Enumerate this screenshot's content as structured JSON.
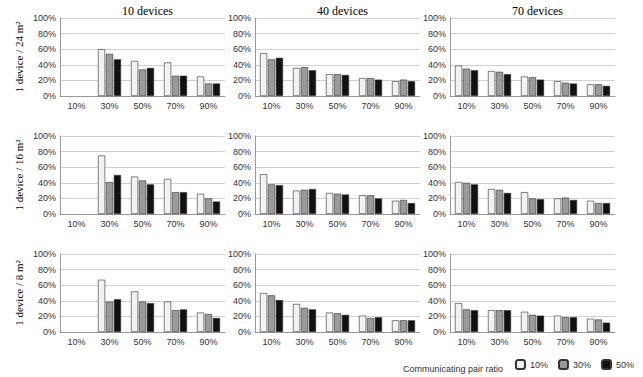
{
  "chart_data": [
    {
      "type": "bar",
      "title": "10 devices",
      "ylabel": "1 device / 24 m²",
      "categories": [
        "10%",
        "30%",
        "50%",
        "70%",
        "90%"
      ],
      "series": [
        {
          "name": "10%",
          "color": "#f2f2f2",
          "values": [
            null,
            60,
            45,
            43,
            25
          ]
        },
        {
          "name": "30%",
          "color": "#9a9a9a",
          "values": [
            null,
            54,
            34,
            26,
            16
          ]
        },
        {
          "name": "50%",
          "color": "#111111",
          "values": [
            null,
            47,
            36,
            26,
            16
          ]
        }
      ],
      "ylim": [
        0,
        100
      ],
      "yticks": [
        {
          "value": 0,
          "label": "0%"
        },
        {
          "value": 20,
          "label": "20%"
        },
        {
          "value": 40,
          "label": "40%"
        },
        {
          "value": 60,
          "label": "60%"
        },
        {
          "value": 80,
          "label": "80%"
        },
        {
          "value": 100,
          "label": "100%"
        }
      ],
      "grid": true
    },
    {
      "type": "bar",
      "title": "40 devices",
      "categories": [
        "10%",
        "30%",
        "50%",
        "70%",
        "90%"
      ],
      "series": [
        {
          "name": "10%",
          "color": "#f2f2f2",
          "values": [
            55,
            36,
            28,
            23,
            19
          ]
        },
        {
          "name": "30%",
          "color": "#9a9a9a",
          "values": [
            47,
            37,
            28,
            23,
            21
          ]
        },
        {
          "name": "50%",
          "color": "#111111",
          "values": [
            49,
            33,
            27,
            21,
            19
          ]
        }
      ],
      "ylim": [
        0,
        100
      ],
      "yticks": [
        {
          "value": 0,
          "label": "0%"
        },
        {
          "value": 20,
          "label": "20%"
        },
        {
          "value": 40,
          "label": "40%"
        },
        {
          "value": 60,
          "label": "60%"
        },
        {
          "value": 80,
          "label": "80%"
        },
        {
          "value": 100,
          "label": "100%"
        }
      ],
      "grid": true
    },
    {
      "type": "bar",
      "title": "70 devices",
      "categories": [
        "10%",
        "30%",
        "50%",
        "70%",
        "90%"
      ],
      "series": [
        {
          "name": "10%",
          "color": "#f2f2f2",
          "values": [
            39,
            32,
            25,
            19,
            15
          ]
        },
        {
          "name": "30%",
          "color": "#9a9a9a",
          "values": [
            35,
            31,
            24,
            17,
            15
          ]
        },
        {
          "name": "50%",
          "color": "#111111",
          "values": [
            33,
            28,
            21,
            16,
            13
          ]
        }
      ],
      "ylim": [
        0,
        100
      ],
      "yticks": [
        {
          "value": 0,
          "label": "0%"
        },
        {
          "value": 20,
          "label": "20%"
        },
        {
          "value": 40,
          "label": "40%"
        },
        {
          "value": 60,
          "label": "60%"
        },
        {
          "value": 80,
          "label": "80%"
        },
        {
          "value": 100,
          "label": "100%"
        }
      ],
      "grid": true
    },
    {
      "type": "bar",
      "ylabel": "1 device / 16 m²",
      "categories": [
        "10%",
        "30%",
        "50%",
        "70%",
        "90%"
      ],
      "series": [
        {
          "name": "10%",
          "color": "#f2f2f2",
          "values": [
            null,
            75,
            48,
            45,
            26
          ]
        },
        {
          "name": "30%",
          "color": "#9a9a9a",
          "values": [
            null,
            41,
            43,
            28,
            20
          ]
        },
        {
          "name": "50%",
          "color": "#111111",
          "values": [
            null,
            50,
            38,
            28,
            16
          ]
        }
      ],
      "ylim": [
        0,
        100
      ],
      "yticks": [
        {
          "value": 0,
          "label": "0%"
        },
        {
          "value": 20,
          "label": "20%"
        },
        {
          "value": 40,
          "label": "40%"
        },
        {
          "value": 60,
          "label": "60%"
        },
        {
          "value": 80,
          "label": "80%"
        },
        {
          "value": 100,
          "label": "100%"
        }
      ],
      "grid": true
    },
    {
      "type": "bar",
      "categories": [
        "10%",
        "30%",
        "50%",
        "70%",
        "90%"
      ],
      "series": [
        {
          "name": "10%",
          "color": "#f2f2f2",
          "values": [
            51,
            30,
            27,
            24,
            17
          ]
        },
        {
          "name": "30%",
          "color": "#9a9a9a",
          "values": [
            38,
            31,
            26,
            24,
            18
          ]
        },
        {
          "name": "50%",
          "color": "#111111",
          "values": [
            37,
            32,
            25,
            20,
            14
          ]
        }
      ],
      "ylim": [
        0,
        100
      ],
      "yticks": [
        {
          "value": 0,
          "label": "0%"
        },
        {
          "value": 20,
          "label": "20%"
        },
        {
          "value": 40,
          "label": "40%"
        },
        {
          "value": 60,
          "label": "60%"
        },
        {
          "value": 80,
          "label": "80%"
        },
        {
          "value": 100,
          "label": "100%"
        }
      ],
      "grid": true
    },
    {
      "type": "bar",
      "categories": [
        "10%",
        "30%",
        "50%",
        "70%",
        "90%"
      ],
      "series": [
        {
          "name": "10%",
          "color": "#f2f2f2",
          "values": [
            41,
            32,
            28,
            20,
            17
          ]
        },
        {
          "name": "30%",
          "color": "#9a9a9a",
          "values": [
            40,
            31,
            20,
            21,
            14
          ]
        },
        {
          "name": "50%",
          "color": "#111111",
          "values": [
            38,
            27,
            19,
            18,
            14
          ]
        }
      ],
      "ylim": [
        0,
        100
      ],
      "yticks": [
        {
          "value": 0,
          "label": "0%"
        },
        {
          "value": 20,
          "label": "20%"
        },
        {
          "value": 40,
          "label": "40%"
        },
        {
          "value": 60,
          "label": "60%"
        },
        {
          "value": 80,
          "label": "80%"
        },
        {
          "value": 100,
          "label": "100%"
        }
      ],
      "grid": true
    },
    {
      "type": "bar",
      "ylabel": "1 device / 8 m²",
      "categories": [
        "10%",
        "30%",
        "50%",
        "70%",
        "90%"
      ],
      "series": [
        {
          "name": "10%",
          "color": "#f2f2f2",
          "values": [
            null,
            67,
            52,
            39,
            25
          ]
        },
        {
          "name": "30%",
          "color": "#9a9a9a",
          "values": [
            null,
            39,
            39,
            28,
            23
          ]
        },
        {
          "name": "50%",
          "color": "#111111",
          "values": [
            null,
            42,
            37,
            29,
            18
          ]
        }
      ],
      "ylim": [
        0,
        100
      ],
      "yticks": [
        {
          "value": 0,
          "label": "0%"
        },
        {
          "value": 20,
          "label": "20%"
        },
        {
          "value": 40,
          "label": "40%"
        },
        {
          "value": 60,
          "label": "60%"
        },
        {
          "value": 80,
          "label": "80%"
        },
        {
          "value": 100,
          "label": "100%"
        }
      ],
      "grid": true
    },
    {
      "type": "bar",
      "categories": [
        "10%",
        "30%",
        "50%",
        "70%",
        "90%"
      ],
      "series": [
        {
          "name": "10%",
          "color": "#f2f2f2",
          "values": [
            50,
            36,
            25,
            21,
            15
          ]
        },
        {
          "name": "30%",
          "color": "#9a9a9a",
          "values": [
            47,
            31,
            24,
            18,
            15
          ]
        },
        {
          "name": "50%",
          "color": "#111111",
          "values": [
            41,
            29,
            22,
            19,
            15
          ]
        }
      ],
      "ylim": [
        0,
        100
      ],
      "yticks": [
        {
          "value": 0,
          "label": "0%"
        },
        {
          "value": 20,
          "label": "20%"
        },
        {
          "value": 40,
          "label": "40%"
        },
        {
          "value": 60,
          "label": "60%"
        },
        {
          "value": 80,
          "label": "80%"
        },
        {
          "value": 100,
          "label": "100%"
        }
      ],
      "grid": true
    },
    {
      "type": "bar",
      "legend": "bottom right",
      "annotation": "Communicating pair ratio",
      "categories": [
        "10%",
        "30%",
        "50%",
        "70%",
        "90%"
      ],
      "series": [
        {
          "name": "10%",
          "color": "#f2f2f2",
          "values": [
            37,
            28,
            26,
            21,
            17
          ]
        },
        {
          "name": "30%",
          "color": "#9a9a9a",
          "values": [
            29,
            28,
            22,
            19,
            16
          ]
        },
        {
          "name": "50%",
          "color": "#111111",
          "values": [
            28,
            28,
            21,
            19,
            12
          ]
        }
      ],
      "ylim": [
        0,
        100
      ],
      "yticks": [
        {
          "value": 0,
          "label": "0%"
        },
        {
          "value": 20,
          "label": "20%"
        },
        {
          "value": 40,
          "label": "40%"
        },
        {
          "value": 60,
          "label": "60%"
        },
        {
          "value": 80,
          "label": "80%"
        },
        {
          "value": 100,
          "label": "100%"
        }
      ],
      "grid": true
    }
  ]
}
